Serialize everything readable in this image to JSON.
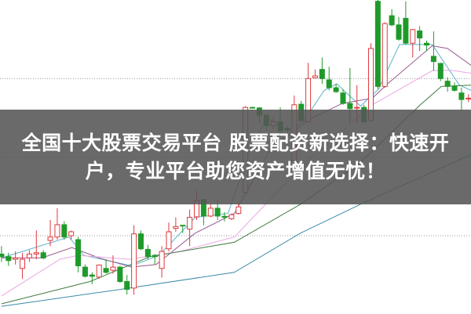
{
  "headline": {
    "line1": "全国十大股票交易平台 股票配资新选择：快速开",
    "line2": "户，专业平台助您资产增值无忧！"
  },
  "chart_data": {
    "type": "candlestick",
    "title": "",
    "xlabel": "",
    "ylabel": "",
    "grid": true,
    "gridlines": [
      30,
      60,
      90
    ],
    "ylim": [
      0,
      120
    ],
    "up_color": "#e0393e",
    "down_color": "#1f9a2a",
    "candles": [
      [
        23,
        26,
        20,
        22
      ],
      [
        22,
        23.5,
        18.5,
        20.5
      ],
      [
        21,
        24,
        19,
        21.5
      ],
      [
        17.5,
        23.5,
        13.5,
        21
      ],
      [
        21.5,
        24.5,
        20,
        23
      ],
      [
        23,
        32,
        21,
        23.5
      ],
      [
        23.5,
        24.5,
        21,
        21.5
      ],
      [
        28.2,
        36,
        26,
        29.5
      ],
      [
        29.5,
        40.5,
        28.5,
        34.2
      ],
      [
        34.2,
        35.5,
        28.5,
        29.5
      ],
      [
        30,
        32,
        28.5,
        31.5
      ],
      [
        28.5,
        29.5,
        16,
        18.5
      ],
      [
        18,
        19,
        14,
        14.5
      ],
      [
        15,
        16,
        11.5,
        14.5
      ],
      [
        14.2,
        19,
        13.5,
        18.8
      ],
      [
        17.5,
        21,
        15.5,
        16
      ],
      [
        16.8,
        22.5,
        15.5,
        18
      ],
      [
        18,
        18.5,
        12,
        12.5
      ],
      [
        12.5,
        15,
        7.5,
        9.5
      ],
      [
        10,
        34,
        7.5,
        30.7
      ],
      [
        30.7,
        32,
        24.5,
        25
      ],
      [
        24.8,
        26.5,
        21,
        22
      ],
      [
        22.5,
        23,
        19,
        22
      ],
      [
        17.5,
        26,
        14,
        24
      ],
      [
        25,
        35,
        24,
        31.5
      ],
      [
        32.8,
        37,
        31.5,
        33.5
      ],
      [
        34,
        34,
        31,
        33.8
      ],
      [
        32.5,
        40,
        26,
        37
      ],
      [
        37.2,
        47.5,
        36,
        43.5
      ],
      [
        43.8,
        44,
        34,
        37.5
      ],
      [
        37.5,
        42,
        37,
        40.5
      ],
      [
        40.5,
        44,
        36,
        37.5
      ],
      [
        37.4,
        39,
        35.5,
        37
      ],
      [
        36.5,
        38.5,
        36,
        38
      ],
      [
        38.5,
        42.5,
        38,
        41
      ],
      [
        46.5,
        79.5,
        46,
        79
      ],
      [
        79,
        79.2,
        78.5,
        78.8
      ],
      [
        78.8,
        79,
        73,
        76
      ],
      [
        76,
        76.5,
        70,
        72
      ],
      [
        72,
        75.5,
        70.5,
        73.5
      ],
      [
        73.5,
        79,
        69.5,
        70
      ],
      [
        71,
        72,
        69,
        70.5
      ],
      [
        58.5,
        83.5,
        55,
        80
      ],
      [
        80.2,
        81.5,
        73.5,
        74
      ],
      [
        73.5,
        96,
        73,
        90
      ],
      [
        90.3,
        93.5,
        90,
        91
      ],
      [
        93.5,
        98,
        88,
        90
      ],
      [
        89.5,
        94.5,
        85.5,
        86.5
      ],
      [
        86.5,
        88,
        84.5,
        85
      ],
      [
        84.5,
        86,
        80,
        80.5
      ],
      [
        80.5,
        94,
        73,
        78.5
      ],
      [
        78.8,
        87.5,
        73,
        79
      ],
      [
        79,
        80,
        73,
        73.5
      ],
      [
        74,
        103.5,
        73.5,
        101.5
      ],
      [
        119.5,
        120,
        86,
        87
      ],
      [
        87,
        111.5,
        86.5,
        111
      ],
      [
        114,
        116.5,
        110,
        110.5
      ],
      [
        110.5,
        113.5,
        104.5,
        105
      ],
      [
        113,
        119.5,
        103,
        103.5
      ],
      [
        103.5,
        109,
        98,
        108.7
      ],
      [
        108.2,
        110,
        100.5,
        105.5
      ],
      [
        103.5,
        104.5,
        100.5,
        102.8
      ],
      [
        98.5,
        108,
        93,
        96.5
      ],
      [
        95.8,
        96,
        89,
        90
      ],
      [
        89,
        90.5,
        85,
        87
      ],
      [
        87,
        88.5,
        85,
        85.5
      ],
      [
        84.5,
        86.5,
        77.5,
        82
      ],
      [
        82.2,
        84,
        81,
        82.5
      ]
    ],
    "candle_fields": [
      "open",
      "high",
      "low",
      "close"
    ],
    "moving_averages": [
      {
        "color": "#5ab4cc",
        "points": [
          [
            0,
            21.5
          ],
          [
            9.7,
            29.5
          ],
          [
            11.8,
            22.5
          ],
          [
            18.7,
            18.5
          ],
          [
            22.6,
            22.5
          ],
          [
            27.8,
            37
          ],
          [
            32.5,
            38.5
          ],
          [
            35.6,
            62.5
          ],
          [
            38.1,
            75
          ],
          [
            41.2,
            70
          ],
          [
            43.3,
            73.5
          ],
          [
            46.3,
            85.5
          ],
          [
            48.1,
            88
          ],
          [
            51.5,
            79.5
          ],
          [
            54.1,
            86
          ],
          [
            57.1,
            103
          ],
          [
            61.8,
            103
          ],
          [
            65.7,
            87.5
          ],
          [
            67.4,
            85.5
          ]
        ]
      },
      {
        "color": "#9a5a8e",
        "points": [
          [
            0,
            21.5
          ],
          [
            5.8,
            21.5
          ],
          [
            10.1,
            25.5
          ],
          [
            14,
            21.5
          ],
          [
            18.7,
            18
          ],
          [
            22.2,
            19
          ],
          [
            27.8,
            31
          ],
          [
            33.4,
            38.5
          ],
          [
            38.6,
            63
          ],
          [
            44.2,
            74.5
          ],
          [
            48.9,
            80.5
          ],
          [
            53.2,
            82.5
          ],
          [
            55.4,
            88
          ],
          [
            61.8,
            102.5
          ],
          [
            64,
            101.5
          ],
          [
            67.4,
            95
          ]
        ]
      },
      {
        "color": "#eaa6e4",
        "points": [
          [
            0,
            7
          ],
          [
            8.4,
            21
          ],
          [
            11,
            22.5
          ],
          [
            18.3,
            21
          ],
          [
            25.6,
            24
          ],
          [
            33.4,
            29.5
          ],
          [
            42.9,
            56
          ],
          [
            53.2,
            80
          ],
          [
            61.8,
            93
          ],
          [
            64.4,
            93.2
          ],
          [
            67.4,
            92
          ]
        ]
      },
      {
        "color": "#3d7a40",
        "points": [
          [
            0,
            4
          ],
          [
            12.7,
            12.5
          ],
          [
            21.3,
            22
          ],
          [
            33.4,
            27.5
          ],
          [
            42.9,
            42
          ],
          [
            51.5,
            58
          ],
          [
            60.1,
            80
          ],
          [
            63.1,
            87
          ],
          [
            67.4,
            87.5
          ]
        ]
      },
      {
        "color": "#3a8aa6",
        "points": [
          [
            0,
            3
          ],
          [
            17,
            9.5
          ],
          [
            33.4,
            16
          ],
          [
            42.9,
            31
          ],
          [
            51.5,
            42
          ],
          [
            67.4,
            61
          ]
        ]
      }
    ]
  }
}
